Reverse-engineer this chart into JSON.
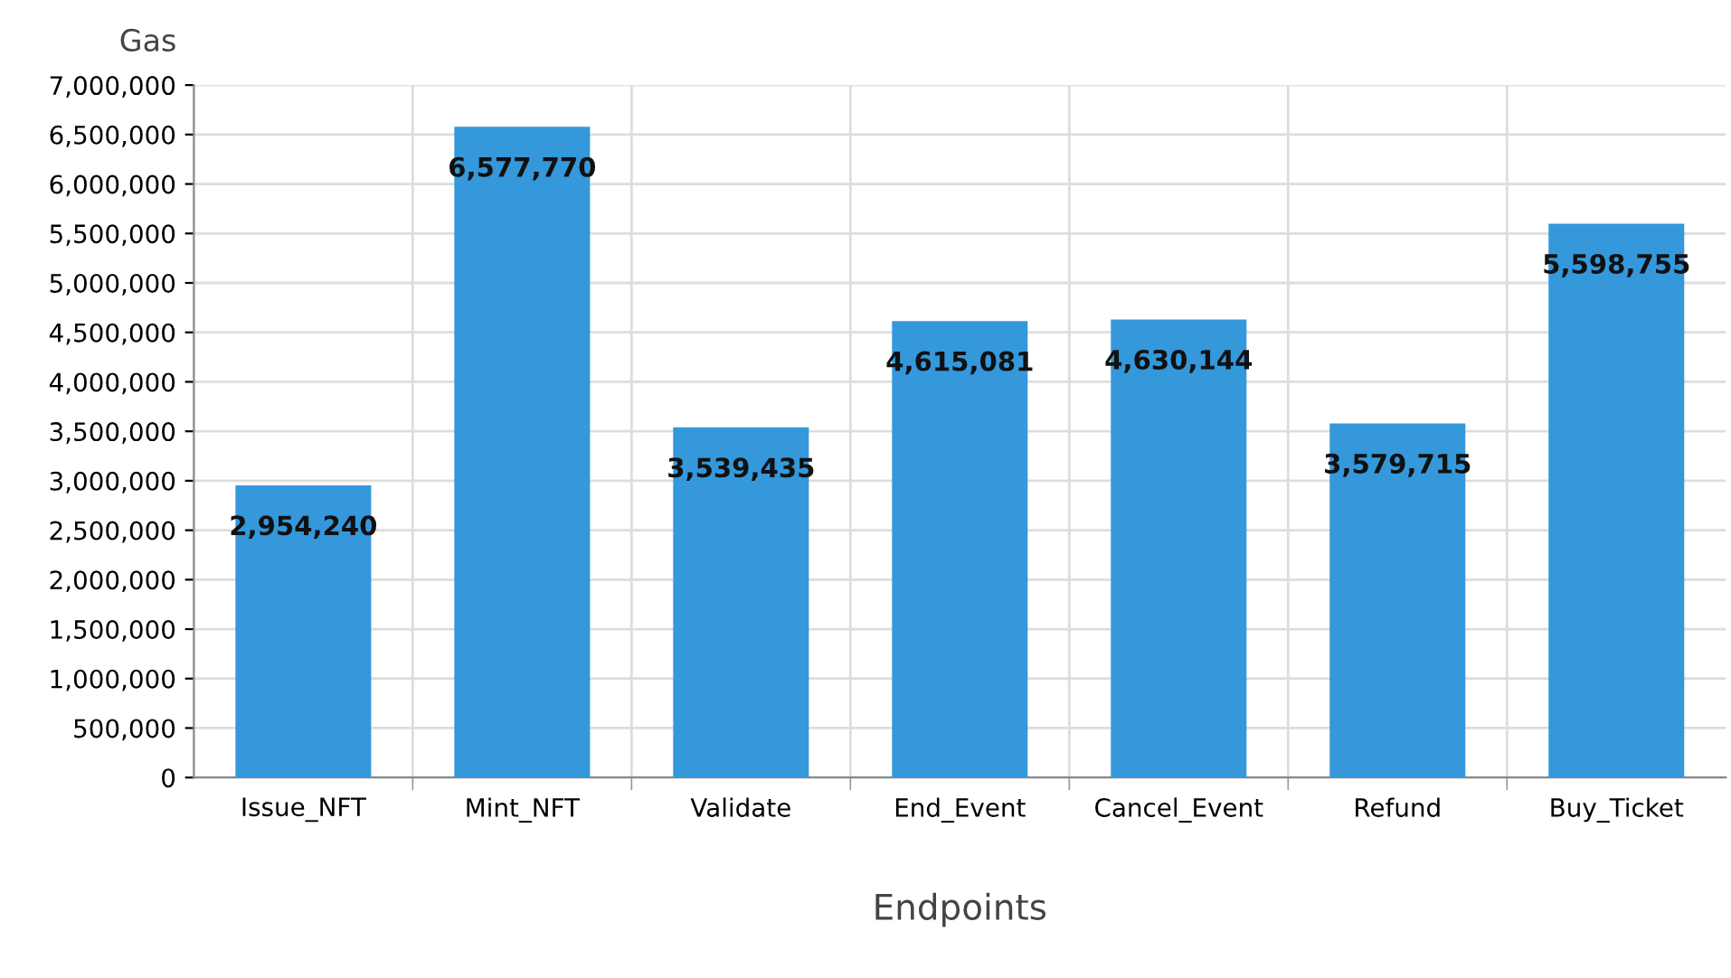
{
  "chart_data": {
    "type": "bar",
    "xlabel": "Endpoints",
    "ylabel": "Gas",
    "categories": [
      "Issue_NFT",
      "Mint_NFT",
      "Validate",
      "End_Event",
      "Cancel_Event",
      "Refund",
      "Buy_Ticket"
    ],
    "values": [
      2954240,
      6577770,
      3539435,
      4615081,
      4630144,
      3579715,
      5598755
    ],
    "value_labels": [
      "2,954,240",
      "6,577,770",
      "3,539,435",
      "4,615,081",
      "4,630,144",
      "3,579,715",
      "5,598,755"
    ],
    "color": "#3498db",
    "grid": true,
    "legend": false,
    "ylim": [
      0,
      7000000
    ],
    "yticks": [
      0,
      {
        "value": 500000,
        "label": "500,000"
      },
      {
        "value": 1000000,
        "label": "1,000,000"
      },
      {
        "value": 1500000,
        "label": "1,500,000"
      },
      {
        "value": 2000000,
        "label": "2,000,000"
      },
      {
        "value": 2500000,
        "label": "2,500,000"
      },
      {
        "value": 3000000,
        "label": "3,000,000"
      },
      {
        "value": 3500000,
        "label": "3,500,000"
      },
      {
        "value": 4000000,
        "label": "4,000,000"
      },
      {
        "value": 4500000,
        "label": "4,500,000"
      },
      {
        "value": 5000000,
        "label": "5,000,000"
      },
      {
        "value": 5500000,
        "label": "5,500,000"
      },
      {
        "value": 6000000,
        "label": "6,000,000"
      },
      {
        "value": 6500000,
        "label": "6,500,000"
      },
      {
        "value": 7000000,
        "label": "7,000,000"
      }
    ]
  }
}
